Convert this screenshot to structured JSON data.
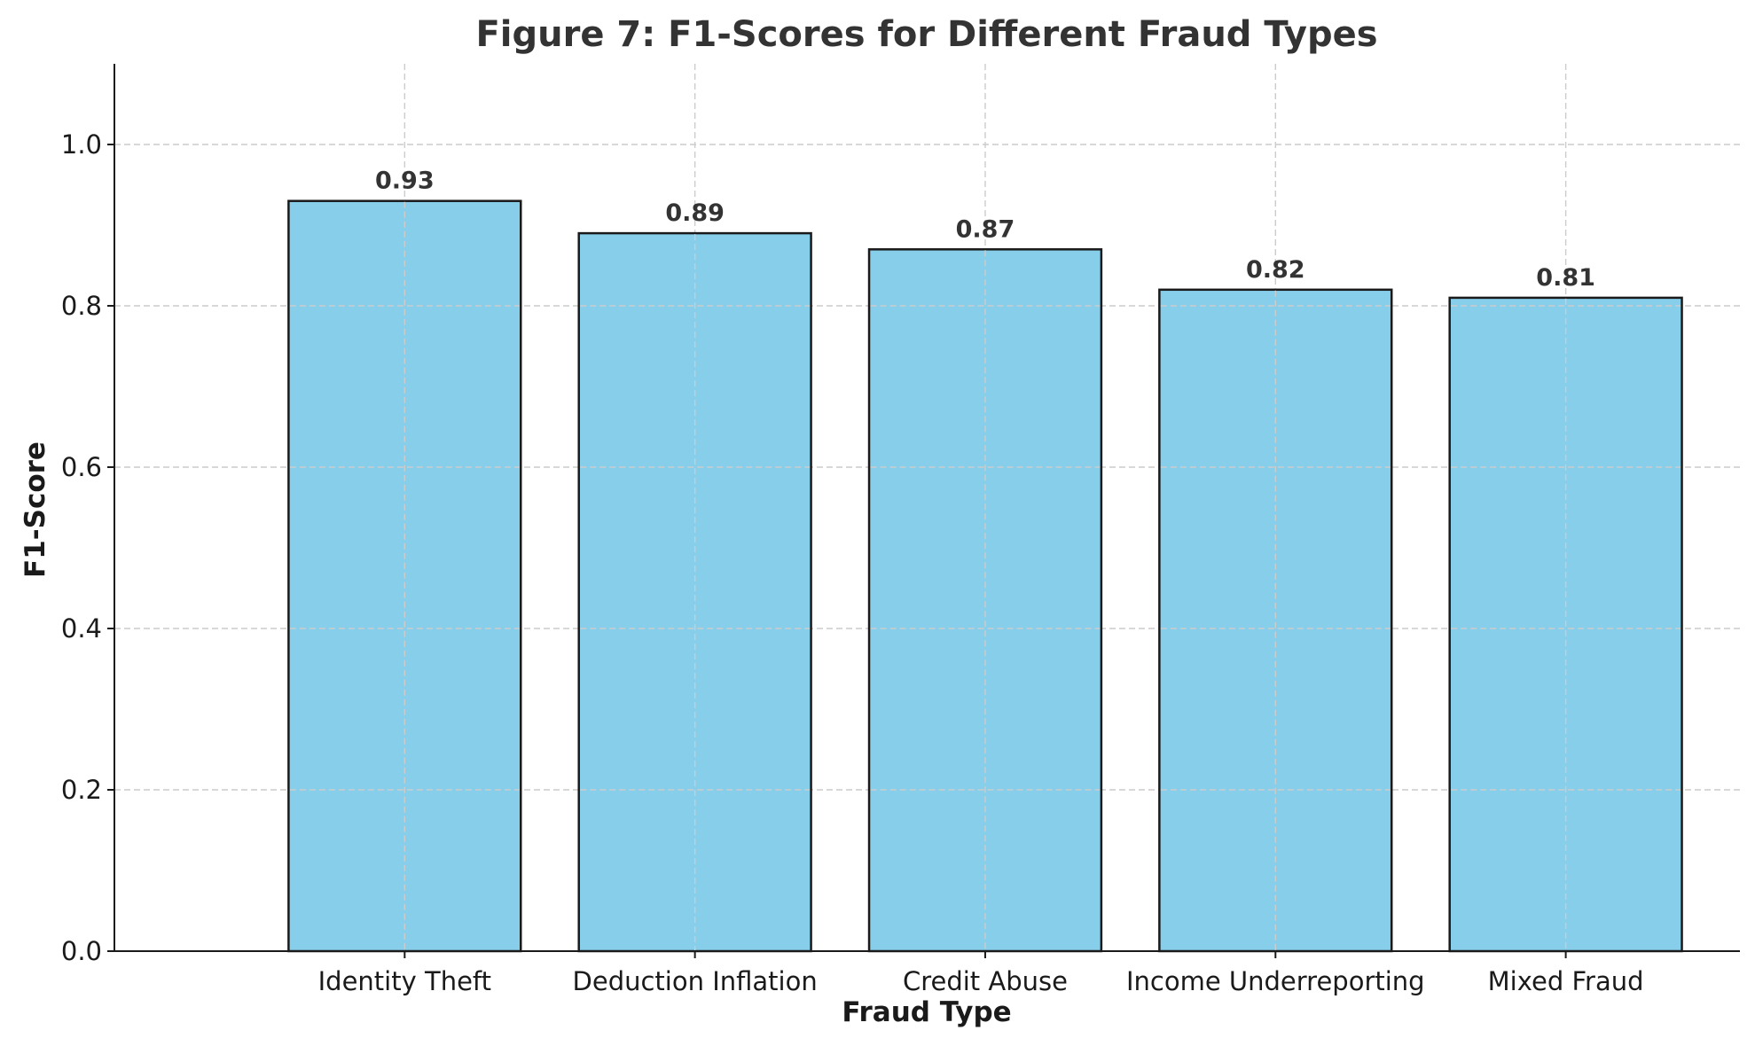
{
  "chart_data": {
    "type": "bar",
    "title": "Figure 7: F1-Scores for Different Fraud Types",
    "xlabel": "Fraud Type",
    "ylabel": "F1-Score",
    "categories": [
      "Identity Theft",
      "Deduction Inflation",
      "Credit Abuse",
      "Income Underreporting",
      "Mixed Fraud"
    ],
    "values": [
      0.93,
      0.89,
      0.87,
      0.82,
      0.81
    ],
    "value_labels": [
      "0.93",
      "0.89",
      "0.87",
      "0.82",
      "0.81"
    ],
    "ylim": [
      0,
      1.1
    ],
    "yticks": [
      0.0,
      0.2,
      0.4,
      0.6,
      0.8,
      1.0
    ],
    "ytick_labels": [
      "0.0",
      "0.2",
      "0.4",
      "0.6",
      "0.8",
      "1.0"
    ],
    "grid": true,
    "bar_color": "#87CEEB",
    "edge_color": "#1a1a1a"
  }
}
